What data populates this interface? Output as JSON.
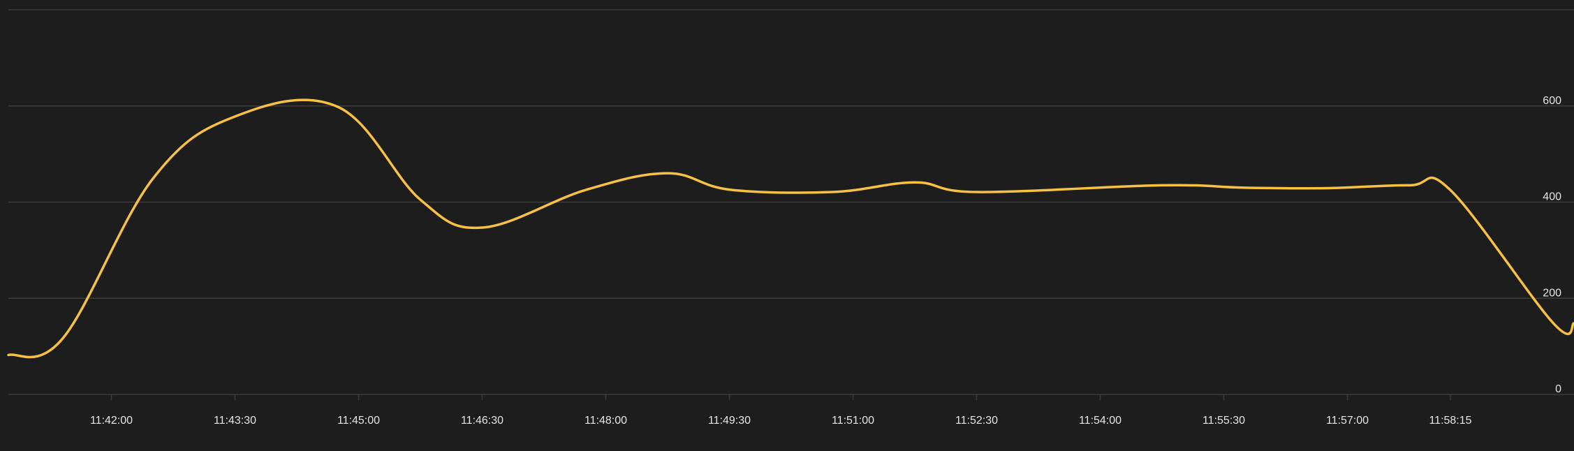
{
  "chart_data": {
    "type": "line",
    "title": "",
    "xlabel": "",
    "ylabel": "",
    "grid": true,
    "ylim": [
      0,
      800
    ],
    "xlim": [
      "11:40:45",
      "11:59:45"
    ],
    "y_ticks": [
      0,
      200,
      400,
      600
    ],
    "x_ticks": [
      "11:42:00",
      "11:43:30",
      "11:45:00",
      "11:46:30",
      "11:48:00",
      "11:49:30",
      "11:51:00",
      "11:52:30",
      "11:54:00",
      "11:55:30",
      "11:57:00",
      "11:58:15"
    ],
    "series": [
      {
        "color": "#f7c244",
        "x": [
          "11:40:45",
          "11:41:25",
          "11:42:30",
          "11:43:30",
          "11:44:45",
          "11:45:45",
          "11:46:30",
          "11:47:45",
          "11:48:45",
          "11:49:30",
          "11:50:45",
          "11:51:45",
          "11:52:30",
          "11:54:45",
          "11:55:45",
          "11:56:45",
          "11:57:45",
          "11:58:15",
          "11:59:30",
          "11:59:45"
        ],
        "y": [
          82,
          118,
          448,
          578,
          598,
          405,
          347,
          425,
          460,
          426,
          421,
          441,
          421,
          435,
          430,
          429,
          435,
          425,
          148,
          148
        ]
      }
    ]
  }
}
